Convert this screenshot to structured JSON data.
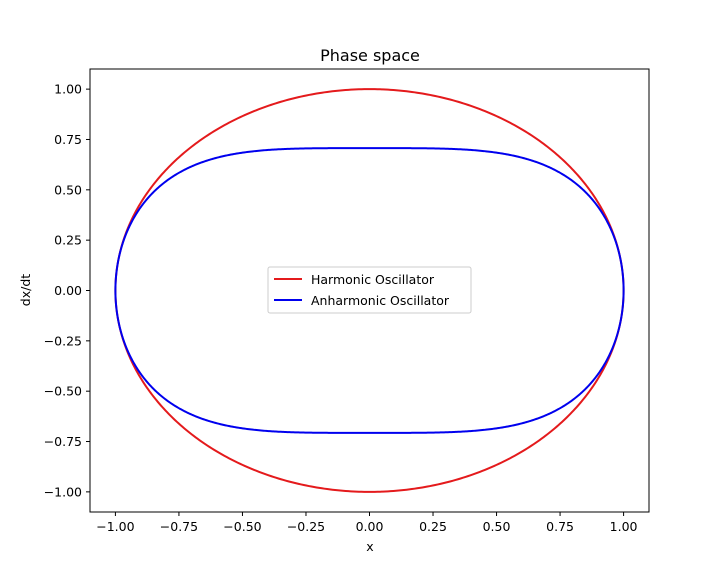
{
  "chart_data": {
    "type": "line",
    "title": "Phase space",
    "xlabel": "x",
    "ylabel": "dx/dt",
    "xlim": [
      -1.1,
      1.1
    ],
    "ylim": [
      -1.1,
      1.1
    ],
    "xticks": [
      -1.0,
      -0.75,
      -0.5,
      -0.25,
      0.0,
      0.25,
      0.5,
      0.75,
      1.0
    ],
    "xtick_labels": [
      "−1.00",
      "−0.75",
      "−0.50",
      "−0.25",
      "0.00",
      "0.25",
      "0.50",
      "0.75",
      "1.00"
    ],
    "yticks": [
      -1.0,
      -0.75,
      -0.5,
      -0.25,
      0.0,
      0.25,
      0.5,
      0.75,
      1.0
    ],
    "ytick_labels": [
      "−1.00",
      "−0.75",
      "−0.50",
      "−0.25",
      "0.00",
      "0.25",
      "0.50",
      "0.75",
      "1.00"
    ],
    "grid": false,
    "legend_position": "center",
    "series": [
      {
        "name": "Harmonic Oscillator",
        "color": "#e41a1c",
        "curve": "circle",
        "amplitude": 1.0
      },
      {
        "name": "Anharmonic Oscillator",
        "color": "#0000ee",
        "curve": "quartic-well",
        "amplitude": 1.0,
        "max_velocity": 0.707
      }
    ]
  }
}
